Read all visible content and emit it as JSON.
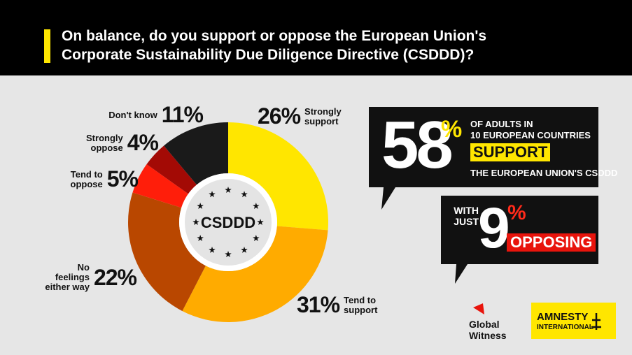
{
  "chart_data": {
    "type": "pie",
    "title": "On balance, do you support or oppose the European Union's Corporate Sustainability Due Diligence Directive (CSDDD)?",
    "center_label": "CSDDD",
    "categories": [
      "Strongly support",
      "Tend to support",
      "No feelings either way",
      "Tend to oppose",
      "Strongly oppose",
      "Don't know"
    ],
    "values": [
      26,
      31,
      22,
      5,
      4,
      11
    ],
    "value_labels": [
      "26%",
      "31%",
      "22%",
      "5%",
      "4%",
      "11%"
    ],
    "colors": [
      "#ffe600",
      "#ffab00",
      "#b94700",
      "#ff1e0a",
      "#a30a05",
      "#1a1a1a"
    ]
  },
  "callouts": {
    "support": {
      "big": "58",
      "pct": "%",
      "line1": "OF ADULTS IN",
      "line2": "10 EUROPEAN COUNTRIES",
      "highlight": "SUPPORT",
      "line3": "THE EUROPEAN UNION'S CSDDD"
    },
    "oppose": {
      "pre": "WITH JUST",
      "big": "9",
      "pct": "%",
      "highlight": "OPPOSING"
    }
  },
  "logos": {
    "global_witness": "Global Witness",
    "amnesty": "AMNESTY",
    "amnesty_sub": "INTERNATIONAL"
  }
}
